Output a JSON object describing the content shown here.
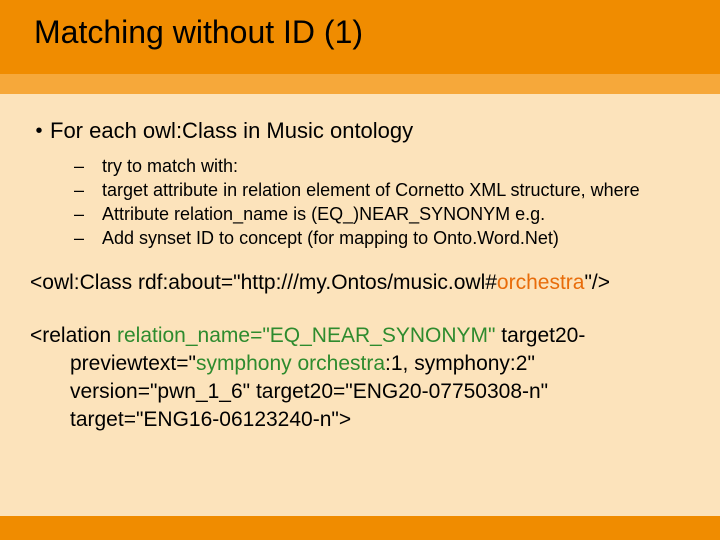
{
  "colors": {
    "header": "#f08c00",
    "subband": "#f6a83a",
    "body_bg": "#fce3bb",
    "highlight_orange": "#e86c0a",
    "highlight_green": "#2e8b2e",
    "text": "#000000"
  },
  "typography": {
    "title_fontsize": 32,
    "body_fontsize": 22,
    "sub_fontsize": 18,
    "code_fontsize": 21,
    "font_family": "Arial"
  },
  "title": "Matching without ID (1)",
  "main_bullet": "For each owl:Class in Music ontology",
  "sub_bullets": [
    "try to match with:",
    "target attribute in relation element of Cornetto XML structure, where",
    "Attribute relation_name is (EQ_)NEAR_SYNONYM e.g.",
    "Add synset ID to concept (for mapping to Onto.Word.Net)"
  ],
  "code1": {
    "pre": "<owl:Class rdf:about=\"http:///my.Ontos/music.owl#",
    "highlight": "orchestra",
    "post": "\"/>"
  },
  "code2": {
    "line1_pre": "<relation ",
    "line1_attr": "relation_name=\"EQ_NEAR_SYNONYM\"",
    "line1_post": " target20-",
    "line2_pre": "previewtext=\"",
    "line2_hl": "symphony orchestra",
    "line2_post": ":1, symphony:2\"",
    "line3": "version=\"pwn_1_6\" target20=\"ENG20-07750308-n\"",
    "line4": "target=\"ENG16-06123240-n\">"
  }
}
